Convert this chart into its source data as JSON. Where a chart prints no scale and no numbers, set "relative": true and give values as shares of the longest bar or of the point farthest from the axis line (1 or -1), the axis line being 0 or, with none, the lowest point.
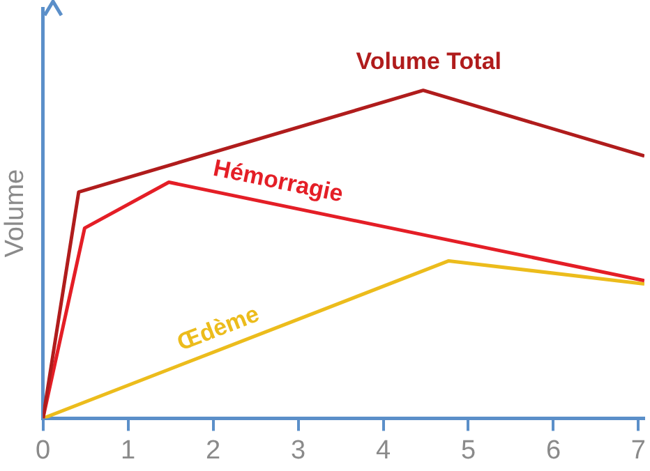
{
  "chart_data": {
    "type": "line",
    "relative": true,
    "ylabel": "Volume",
    "xlim": [
      0,
      7.07
    ],
    "xticks": [
      0,
      1,
      2,
      3,
      4,
      5,
      6,
      7
    ],
    "grid": false,
    "legend": false,
    "marker": "none",
    "line_style": "solid",
    "series": [
      {
        "name": "Volume Total",
        "color": "#b01c1c",
        "x": [
          0,
          0.42,
          4.47,
          7.07
        ],
        "values": [
          0,
          0.69,
          1,
          0.8
        ]
      },
      {
        "name": "Hémorragie",
        "color": "#e41e26",
        "x": [
          0,
          0.49,
          1.48,
          7.07
        ],
        "values": [
          0,
          0.58,
          0.72,
          0.42
        ]
      },
      {
        "name": "Œdème",
        "color": "#ecbc1c",
        "x": [
          0,
          4.77,
          7.07
        ],
        "values": [
          0,
          0.48,
          0.41
        ]
      }
    ]
  }
}
